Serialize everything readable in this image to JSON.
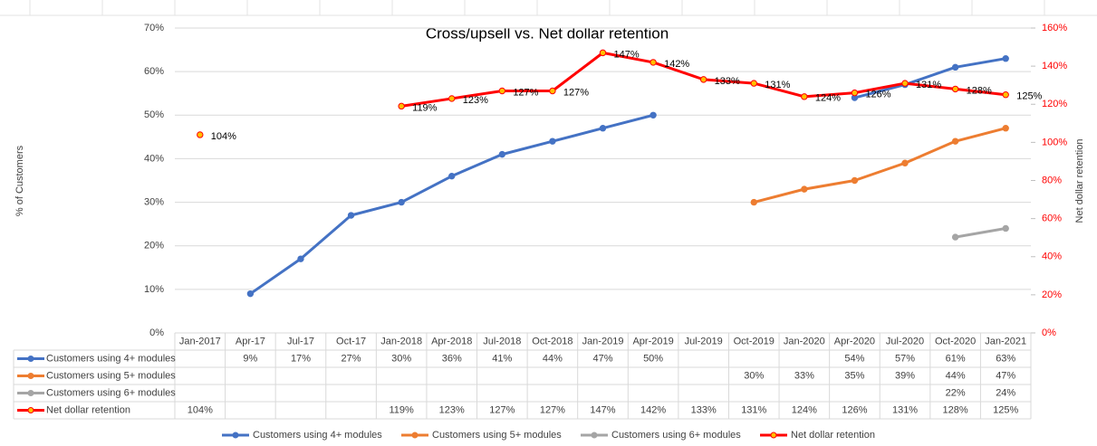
{
  "chart_data": {
    "type": "line",
    "title": "Cross/upsell vs. Net dollar retention",
    "y_label": "% of Customers",
    "y2_label": "Net dollar retention",
    "categories": [
      "Jan-2017",
      "Apr-17",
      "Jul-17",
      "Oct-17",
      "Jan-2018",
      "Apr-2018",
      "Jul-2018",
      "Oct-2018",
      "Jan-2019",
      "Apr-2019",
      "Jul-2019",
      "Oct-2019",
      "Jan-2020",
      "Apr-2020",
      "Jul-2020",
      "Oct-2020",
      "Jan-2021"
    ],
    "ylim": [
      0,
      70
    ],
    "yticks": [
      {
        "value": 0,
        "label": "0%"
      },
      {
        "value": 10,
        "label": "10%"
      },
      {
        "value": 20,
        "label": "20%"
      },
      {
        "value": 30,
        "label": "30%"
      },
      {
        "value": 40,
        "label": "40%"
      },
      {
        "value": 50,
        "label": "50%"
      },
      {
        "value": 60,
        "label": "60%"
      },
      {
        "value": 70,
        "label": "70%"
      }
    ],
    "y2lim": [
      0,
      160
    ],
    "y2ticks": [
      {
        "value": 0,
        "label": "0%"
      },
      {
        "value": 20,
        "label": "20%"
      },
      {
        "value": 40,
        "label": "40%"
      },
      {
        "value": 60,
        "label": "60%"
      },
      {
        "value": 80,
        "label": "80%"
      },
      {
        "value": 100,
        "label": "100%"
      },
      {
        "value": 120,
        "label": "120%"
      },
      {
        "value": 140,
        "label": "140%"
      },
      {
        "value": 160,
        "label": "160%"
      }
    ],
    "y2_color": "#ff0000",
    "grid": true,
    "series": [
      {
        "name": "Customers using 4+ modules",
        "color": "#4472c4",
        "axis": "y",
        "values": [
          null,
          9,
          17,
          27,
          30,
          36,
          41,
          44,
          47,
          50,
          null,
          null,
          null,
          54,
          57,
          61,
          63
        ],
        "value_labels": [
          null,
          "9%",
          "17%",
          "27%",
          "30%",
          "36%",
          "41%",
          "44%",
          "47%",
          "50%",
          null,
          null,
          null,
          "54%",
          "57%",
          "61%",
          "63%"
        ]
      },
      {
        "name": "Customers using 5+ modules",
        "color": "#ed7d31",
        "axis": "y",
        "values": [
          null,
          null,
          null,
          null,
          null,
          null,
          null,
          null,
          null,
          null,
          null,
          30,
          33,
          35,
          39,
          44,
          47
        ],
        "value_labels": [
          null,
          null,
          null,
          null,
          null,
          null,
          null,
          null,
          null,
          null,
          null,
          "30%",
          "33%",
          "35%",
          "39%",
          "44%",
          "47%"
        ]
      },
      {
        "name": "Customers using 6+ modules",
        "color": "#a5a5a5",
        "axis": "y",
        "values": [
          null,
          null,
          null,
          null,
          null,
          null,
          null,
          null,
          null,
          null,
          null,
          null,
          null,
          null,
          null,
          22,
          24
        ],
        "value_labels": [
          null,
          null,
          null,
          null,
          null,
          null,
          null,
          null,
          null,
          null,
          null,
          null,
          null,
          null,
          null,
          "22%",
          "24%"
        ]
      },
      {
        "name": "Net dollar retention",
        "color": "#ff0000",
        "marker_color": "#ffc000",
        "axis": "y2",
        "show_labels": true,
        "values": [
          104,
          null,
          null,
          null,
          119,
          123,
          127,
          127,
          147,
          142,
          133,
          131,
          124,
          126,
          131,
          128,
          125
        ],
        "value_labels": [
          "104%",
          null,
          null,
          null,
          "119%",
          "123%",
          "127%",
          "127%",
          "147%",
          "142%",
          "133%",
          "131%",
          "124%",
          "126%",
          "131%",
          "128%",
          "125%"
        ]
      }
    ]
  }
}
